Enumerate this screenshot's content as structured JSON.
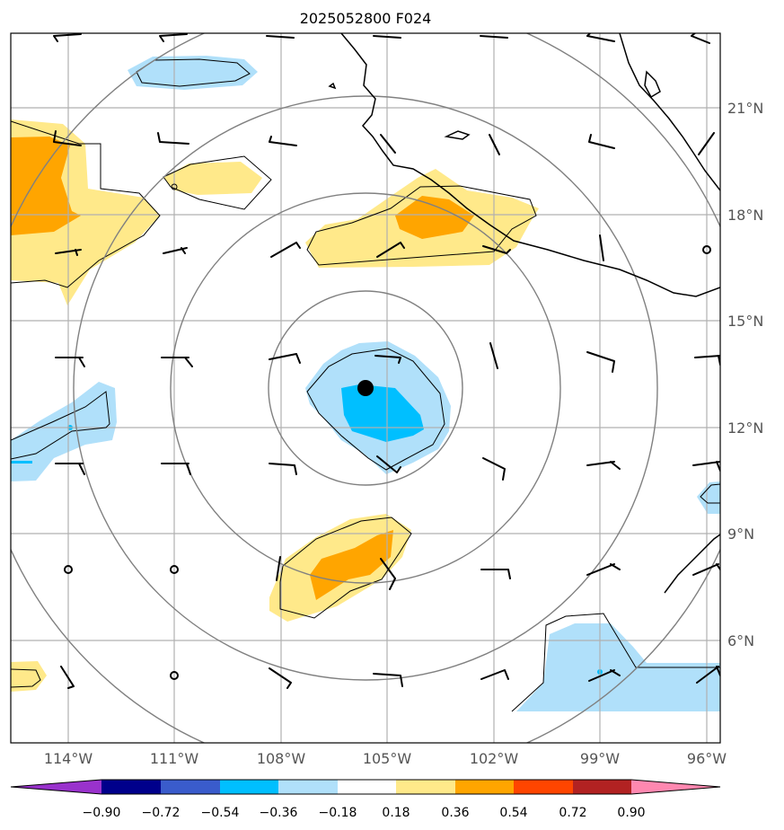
{
  "title": "2025052800 F024",
  "lon_ticks": [
    "114°W",
    "111°W",
    "108°W",
    "105°W",
    "102°W",
    "99°W",
    "96°W"
  ],
  "lat_ticks": [
    "21°N",
    "18°N",
    "15°N",
    "12°N",
    "9°N",
    "6°N"
  ],
  "colorbar": {
    "ticks": [
      "−0.90",
      "−0.72",
      "−0.54",
      "−0.36",
      "−0.18",
      "0.18",
      "0.36",
      "0.54",
      "0.72",
      "0.90"
    ],
    "colors": [
      "#9932cc",
      "#00008b",
      "#3a5ccc",
      "#00bfff",
      "#b0e0fa",
      "#ffffff",
      "#ffe98a",
      "#ffa500",
      "#ff4500",
      "#b22222",
      "#ff88b0"
    ]
  },
  "storm_center": {
    "lon": -105.6,
    "lat": 13.1
  },
  "range_rings_count": 4
}
